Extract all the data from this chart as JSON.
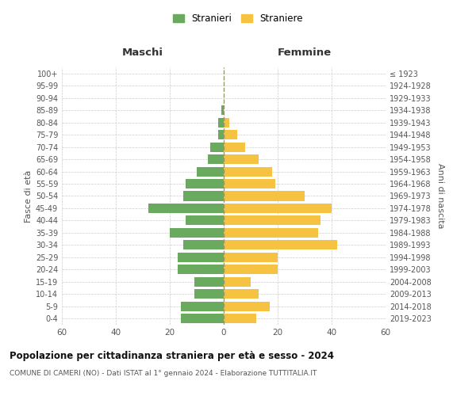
{
  "age_groups": [
    "0-4",
    "5-9",
    "10-14",
    "15-19",
    "20-24",
    "25-29",
    "30-34",
    "35-39",
    "40-44",
    "45-49",
    "50-54",
    "55-59",
    "60-64",
    "65-69",
    "70-74",
    "75-79",
    "80-84",
    "85-89",
    "90-94",
    "95-99",
    "100+"
  ],
  "birth_years": [
    "2019-2023",
    "2014-2018",
    "2009-2013",
    "2004-2008",
    "1999-2003",
    "1994-1998",
    "1989-1993",
    "1984-1988",
    "1979-1983",
    "1974-1978",
    "1969-1973",
    "1964-1968",
    "1959-1963",
    "1954-1958",
    "1949-1953",
    "1944-1948",
    "1939-1943",
    "1934-1938",
    "1929-1933",
    "1924-1928",
    "≤ 1923"
  ],
  "males": [
    16,
    16,
    11,
    11,
    17,
    17,
    15,
    20,
    14,
    28,
    15,
    14,
    10,
    6,
    5,
    2,
    2,
    1,
    0,
    0,
    0
  ],
  "females": [
    12,
    17,
    13,
    10,
    20,
    20,
    42,
    35,
    36,
    40,
    30,
    19,
    18,
    13,
    8,
    5,
    2,
    0,
    0,
    0,
    0
  ],
  "male_color": "#6aaa5e",
  "female_color": "#f5c242",
  "background_color": "#ffffff",
  "grid_color": "#cccccc",
  "title": "Popolazione per cittadinanza straniera per età e sesso - 2024",
  "subtitle": "COMUNE DI CAMERI (NO) - Dati ISTAT al 1° gennaio 2024 - Elaborazione TUTTITALIA.IT",
  "legend_male": "Stranieri",
  "legend_female": "Straniere",
  "xlabel_left": "Maschi",
  "xlabel_right": "Femmine",
  "ylabel_left": "Fasce di età",
  "ylabel_right": "Anni di nascita",
  "xlim": 60,
  "dashed_line_color": "#999966"
}
